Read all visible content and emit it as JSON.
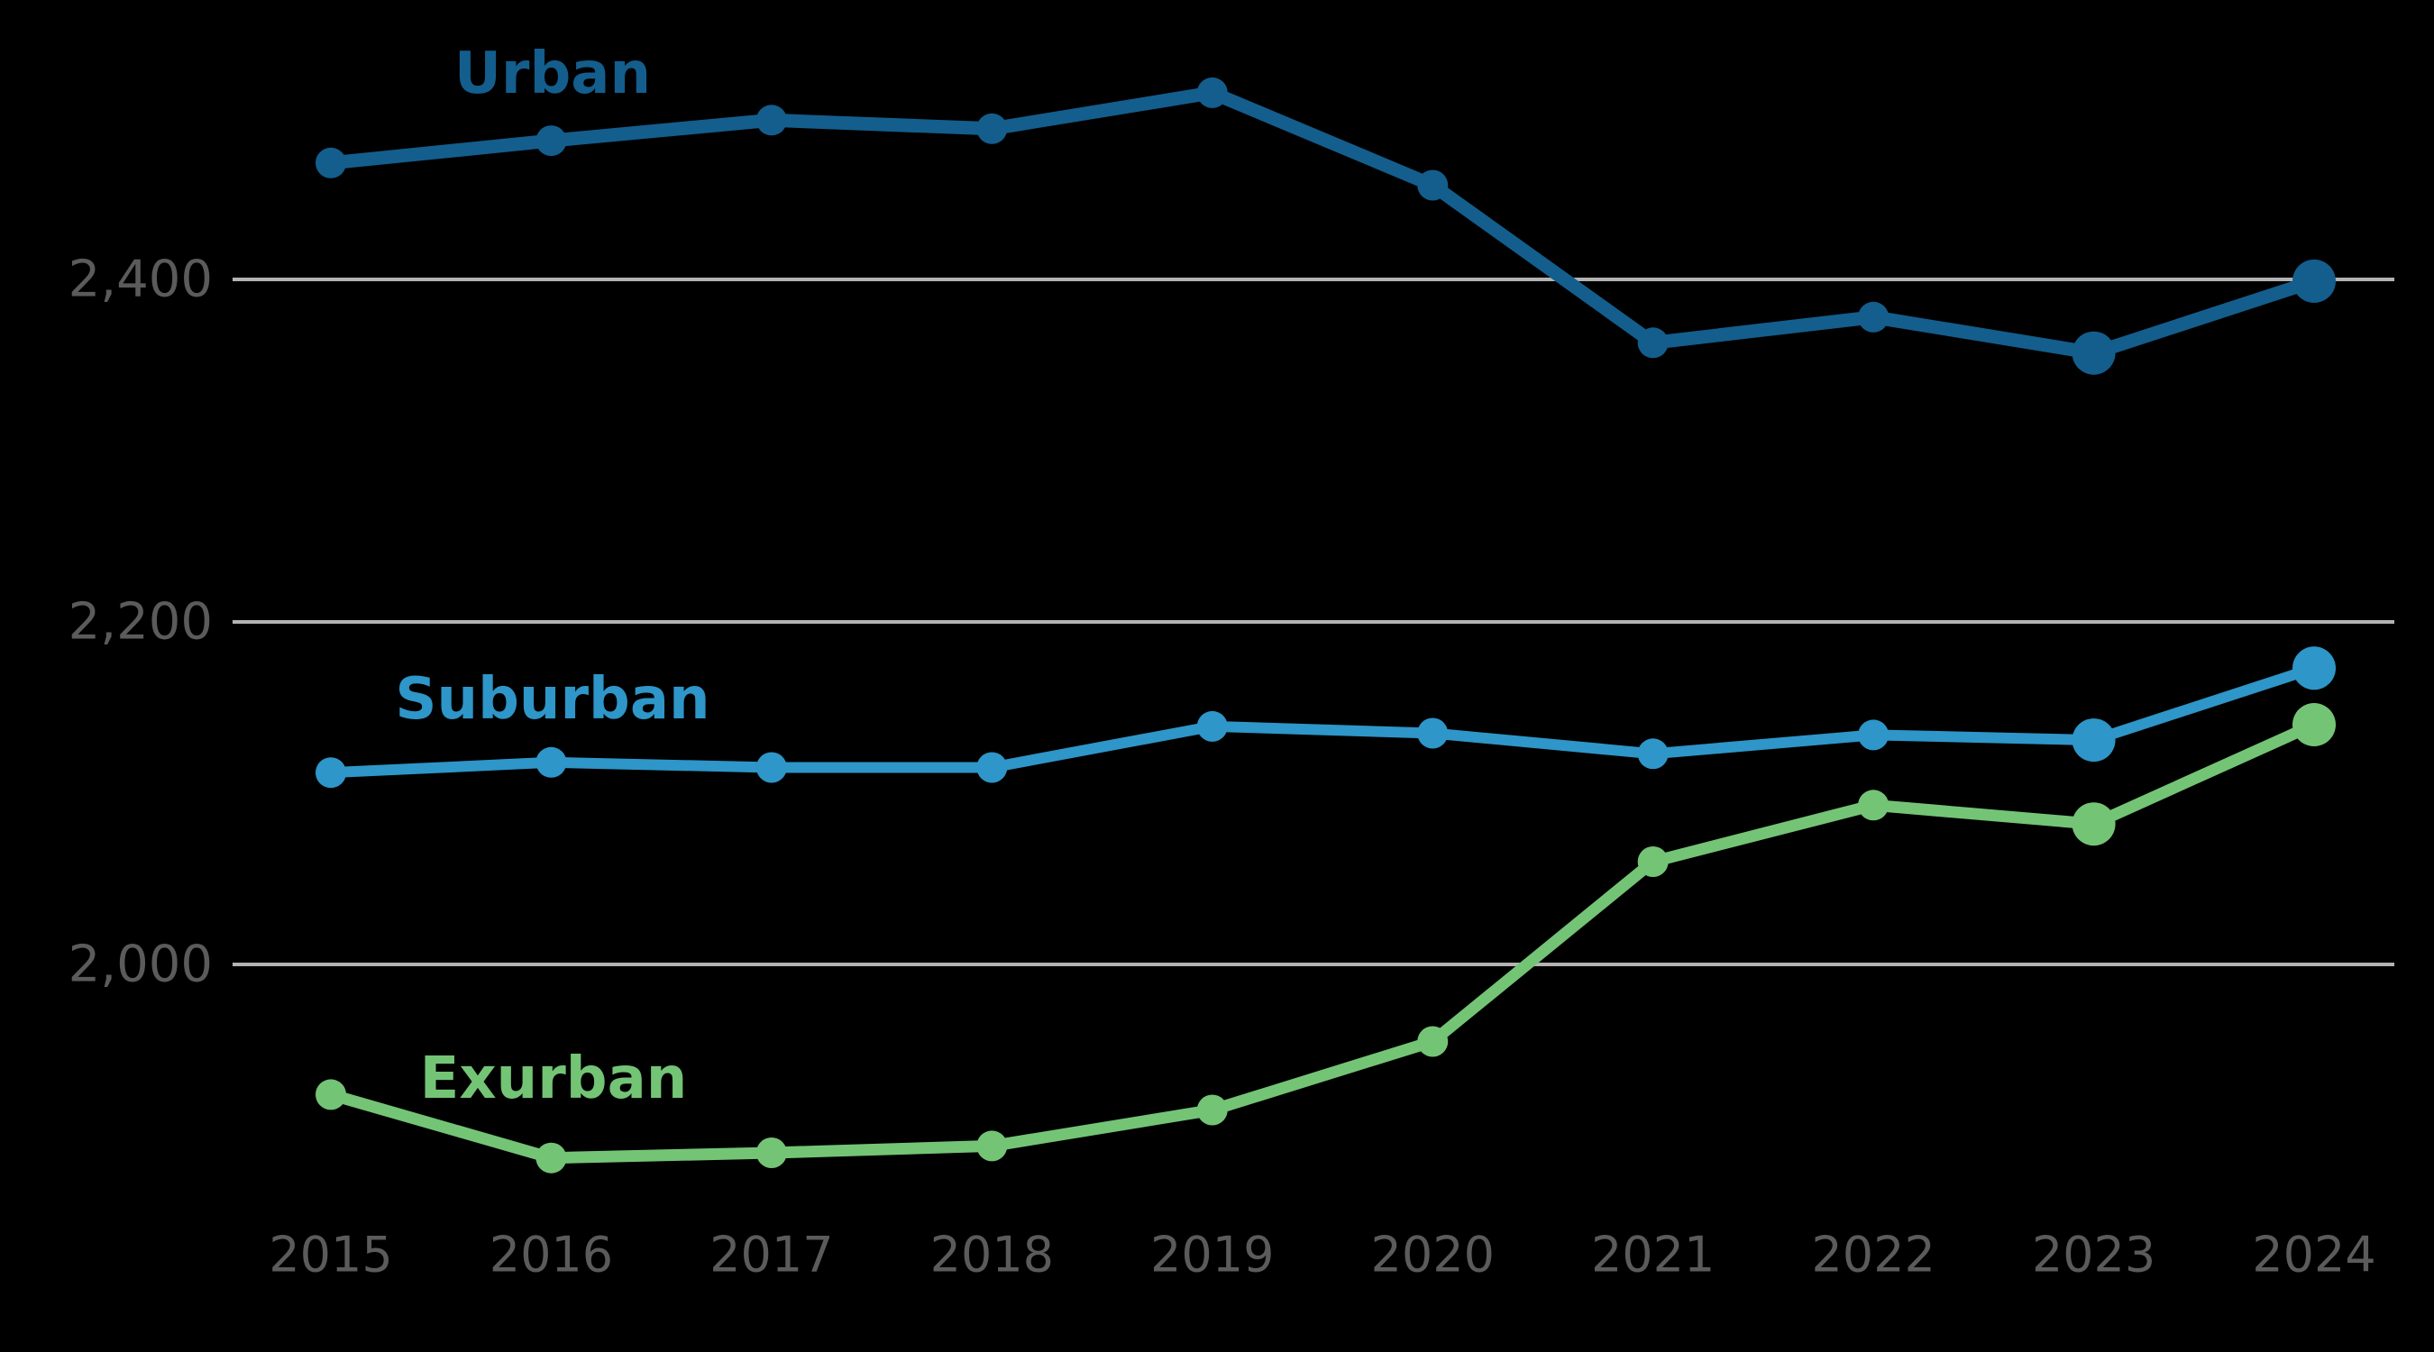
{
  "chart_data": {
    "type": "line",
    "title": "",
    "xlabel": "",
    "ylabel": "",
    "x": [
      2015,
      2016,
      2017,
      2018,
      2019,
      2020,
      2021,
      2022,
      2023,
      2024
    ],
    "x_labels": [
      "2015",
      "2016",
      "2017",
      "2018",
      "2019",
      "2020",
      "2021",
      "2022",
      "2023",
      "2024"
    ],
    "series": [
      {
        "name": "Urban",
        "color": "#135e8d",
        "values": [
          2468,
          2481,
          2493,
          2488,
          2509,
          2455,
          2363,
          2378,
          2357,
          2399
        ]
      },
      {
        "name": "Suburban",
        "color": "#2e96c8",
        "values": [
          2112,
          2118,
          2115,
          2115,
          2139,
          2135,
          2123,
          2134,
          2131,
          2173
        ]
      },
      {
        "name": "Exurban",
        "color": "#74c476",
        "values": [
          1924,
          1887,
          1890,
          1894,
          1915,
          1955,
          2060,
          2093,
          2082,
          2140
        ]
      }
    ],
    "yticks": [
      {
        "value": 2400,
        "label": "2,400"
      },
      {
        "value": 2200,
        "label": "2,200"
      },
      {
        "value": 2000,
        "label": "2,000"
      }
    ],
    "ylim": [
      1850,
      2565
    ],
    "grid": "horizontal-only",
    "legend": "inline-colored-labels",
    "emphasized_years": [
      2023,
      2024
    ],
    "background": "#000000",
    "gridline_color": "#b3b3b3",
    "tick_text_color": "#5b5b5b"
  }
}
